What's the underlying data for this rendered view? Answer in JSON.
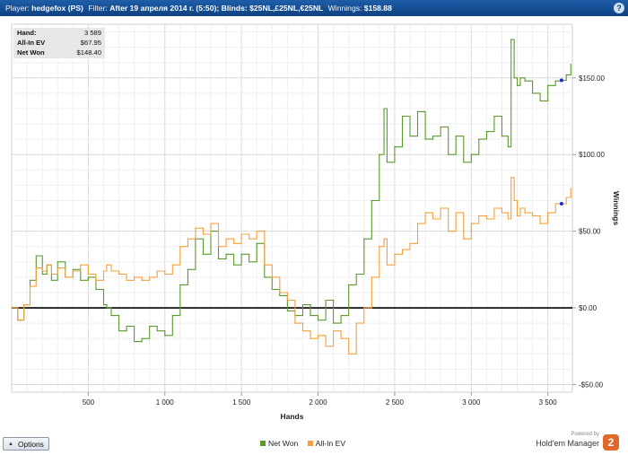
{
  "header": {
    "player_label": "Player:",
    "player_value": "hedgefox (PS)",
    "filter_label": "Filter:",
    "filter_value": "After 19 апреля 2014 г. (5:50); Blinds: $25NL,£25NL,€25NL",
    "winnings_label": "Winnings:",
    "winnings_value": "$158.88",
    "help_icon": "?"
  },
  "stats": [
    {
      "label": "Hand:",
      "value": "3 589"
    },
    {
      "label": "All-In EV",
      "value": "$67.95"
    },
    {
      "label": "Net Won",
      "value": "$148.40"
    }
  ],
  "options_label": "Options",
  "brand": {
    "powered": "Powered by",
    "name": "Hold'em Manager",
    "logo": "2"
  },
  "colors": {
    "net_won": "#5a9a2c",
    "all_in_ev": "#f5a03c",
    "titlebar": "#13478a",
    "zero_line": "#000000"
  },
  "chart_data": {
    "type": "line",
    "title": "",
    "xlabel": "Hands",
    "ylabel": "Winnings",
    "xlim": [
      0,
      3660
    ],
    "ylim": [
      -55,
      185
    ],
    "x_ticks": [
      500,
      1000,
      1500,
      2000,
      2500,
      3000,
      3500
    ],
    "x_tick_labels": [
      "500",
      "1 000",
      "1 500",
      "2 000",
      "2 500",
      "3 000",
      "3 500"
    ],
    "y_ticks": [
      -50,
      0,
      50,
      100,
      150
    ],
    "y_tick_labels": [
      "-$50.00",
      "$0.00",
      "$50.00",
      "$100.00",
      "$150.00"
    ],
    "grid": true,
    "legend_position": "bottom-center",
    "series": [
      {
        "name": "Net Won",
        "color": "#5a9a2c",
        "x": [
          0,
          40,
          80,
          120,
          160,
          200,
          230,
          260,
          300,
          350,
          400,
          450,
          500,
          550,
          600,
          620,
          650,
          700,
          750,
          800,
          850,
          900,
          950,
          1000,
          1050,
          1100,
          1150,
          1200,
          1250,
          1300,
          1350,
          1400,
          1450,
          1500,
          1550,
          1600,
          1650,
          1700,
          1750,
          1800,
          1850,
          1900,
          1950,
          2000,
          2050,
          2100,
          2150,
          2200,
          2250,
          2300,
          2350,
          2400,
          2430,
          2450,
          2500,
          2550,
          2600,
          2650,
          2700,
          2750,
          2800,
          2850,
          2900,
          2950,
          3000,
          3050,
          3100,
          3150,
          3200,
          3240,
          3260,
          3280,
          3300,
          3320,
          3350,
          3400,
          3450,
          3500,
          3550,
          3589,
          3620,
          3650
        ],
        "y": [
          0,
          -8,
          2,
          18,
          34,
          22,
          28,
          18,
          30,
          20,
          25,
          18,
          20,
          12,
          2,
          0,
          -5,
          -15,
          -12,
          -22,
          -20,
          -12,
          -15,
          -18,
          -5,
          15,
          25,
          45,
          35,
          50,
          32,
          35,
          28,
          35,
          30,
          42,
          20,
          12,
          8,
          -2,
          -5,
          2,
          -5,
          -8,
          5,
          -10,
          -5,
          15,
          22,
          45,
          70,
          100,
          130,
          95,
          105,
          125,
          112,
          128,
          110,
          112,
          118,
          100,
          112,
          95,
          100,
          110,
          115,
          125,
          112,
          105,
          175,
          150,
          145,
          150,
          148,
          140,
          135,
          145,
          148,
          148.4,
          152,
          158.88
        ]
      },
      {
        "name": "All-In EV",
        "color": "#f5a03c",
        "x": [
          0,
          40,
          80,
          120,
          160,
          200,
          230,
          260,
          300,
          350,
          400,
          450,
          500,
          550,
          600,
          620,
          650,
          700,
          750,
          800,
          850,
          900,
          950,
          1000,
          1050,
          1100,
          1150,
          1200,
          1250,
          1300,
          1350,
          1400,
          1450,
          1500,
          1550,
          1600,
          1650,
          1700,
          1750,
          1800,
          1850,
          1900,
          1950,
          2000,
          2050,
          2100,
          2150,
          2200,
          2250,
          2300,
          2350,
          2400,
          2430,
          2450,
          2500,
          2550,
          2600,
          2650,
          2700,
          2750,
          2800,
          2850,
          2900,
          2950,
          3000,
          3050,
          3100,
          3150,
          3200,
          3240,
          3260,
          3280,
          3300,
          3320,
          3350,
          3400,
          3450,
          3500,
          3550,
          3589,
          3620,
          3650
        ],
        "y": [
          0,
          -8,
          2,
          14,
          26,
          24,
          28,
          22,
          26,
          20,
          24,
          28,
          22,
          18,
          24,
          28,
          24,
          22,
          18,
          20,
          18,
          20,
          24,
          22,
          28,
          40,
          45,
          52,
          48,
          55,
          40,
          45,
          42,
          48,
          45,
          50,
          28,
          20,
          10,
          5,
          -10,
          -15,
          -20,
          -18,
          -25,
          -15,
          -20,
          -30,
          -10,
          0,
          20,
          40,
          45,
          28,
          35,
          38,
          42,
          55,
          62,
          58,
          65,
          50,
          62,
          45,
          55,
          60,
          58,
          65,
          62,
          58,
          85,
          70,
          60,
          65,
          62,
          60,
          55,
          62,
          68,
          67.95,
          72,
          78
        ]
      }
    ]
  }
}
